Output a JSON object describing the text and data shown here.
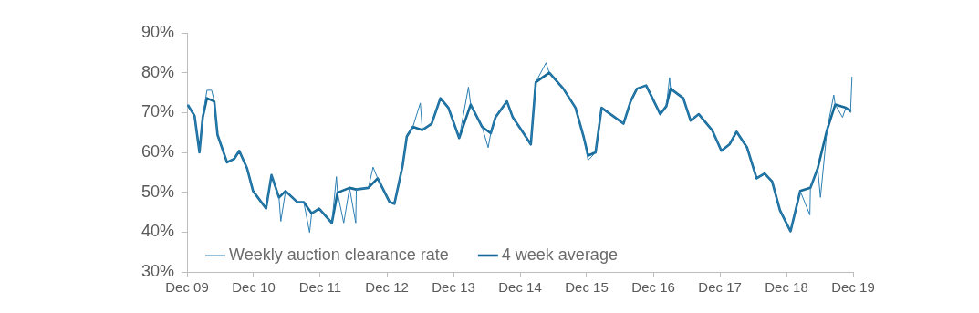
{
  "chart_data": {
    "type": "line",
    "legend": "bottom left",
    "grid": false,
    "marker": "none",
    "line_style": "solid",
    "xlim": [
      "2009-12-01",
      "2019-12-01"
    ],
    "xticks": [
      {
        "value": "2009-12-01",
        "label": "Dec 09"
      },
      {
        "value": "2010-12-01",
        "label": "Dec 10"
      },
      {
        "value": "2011-12-01",
        "label": "Dec 11"
      },
      {
        "value": "2012-12-01",
        "label": "Dec 12"
      },
      {
        "value": "2013-12-01",
        "label": "Dec 13"
      },
      {
        "value": "2014-12-01",
        "label": "Dec 14"
      },
      {
        "value": "2015-12-01",
        "label": "Dec 15"
      },
      {
        "value": "2016-12-01",
        "label": "Dec 16"
      },
      {
        "value": "2017-12-01",
        "label": "Dec 17"
      },
      {
        "value": "2018-12-01",
        "label": "Dec 18"
      },
      {
        "value": "2019-12-01",
        "label": "Dec 19"
      }
    ],
    "ylim": [
      30,
      90
    ],
    "yticks": [
      {
        "value": 30,
        "label": "30%"
      },
      {
        "value": 40,
        "label": "40%"
      },
      {
        "value": 50,
        "label": "50%"
      },
      {
        "value": 60,
        "label": "60%"
      },
      {
        "value": 70,
        "label": "70%"
      },
      {
        "value": 80,
        "label": "80%"
      },
      {
        "value": 90,
        "label": "90%"
      }
    ],
    "series": [
      {
        "name": "Weekly auction clearance rate",
        "color": "#2b7fb4",
        "x": [
          "2009-12-05",
          "2010-01-11",
          "2010-02-07",
          "2010-02-25",
          "2010-03-20",
          "2010-04-15",
          "2010-04-29",
          "2010-05-17",
          "2010-07-08",
          "2010-08-17",
          "2010-09-13",
          "2010-10-26",
          "2010-11-28",
          "2011-02-07",
          "2011-03-09",
          "2011-04-19",
          "2011-04-29",
          "2011-05-25",
          "2011-07-29",
          "2011-09-02",
          "2011-10-04",
          "2011-10-15",
          "2011-11-25",
          "2012-02-03",
          "2012-02-28",
          "2012-03-05",
          "2012-04-08",
          "2012-05-10",
          "2012-06-13",
          "2012-06-16",
          "2012-08-21",
          "2012-09-16",
          "2012-10-11",
          "2012-12-16",
          "2013-01-11",
          "2013-02-25",
          "2013-03-20",
          "2013-04-22",
          "2013-06-02",
          "2013-06-13",
          "2013-08-03",
          "2013-09-20",
          "2013-11-03",
          "2014-01-01",
          "2014-02-21",
          "2014-03-05",
          "2014-05-07",
          "2014-06-09",
          "2014-06-23",
          "2014-07-19",
          "2014-09-20",
          "2014-10-22",
          "2014-12-20",
          "2015-01-29",
          "2015-02-25",
          "2015-04-22",
          "2015-05-10",
          "2015-07-26",
          "2015-10-01",
          "2015-11-14",
          "2015-12-09",
          "2016-01-19",
          "2016-02-21",
          "2016-04-22",
          "2016-06-20",
          "2016-07-29",
          "2016-09-02",
          "2016-10-22",
          "2017-01-08",
          "2017-02-10",
          "2017-02-28",
          "2017-03-05",
          "2017-05-14",
          "2017-06-23",
          "2017-08-07",
          "2017-10-19",
          "2017-12-09",
          "2018-01-22",
          "2018-03-02",
          "2018-04-29",
          "2018-06-20",
          "2018-08-03",
          "2018-09-13",
          "2018-10-26",
          "2018-12-23",
          "2019-02-14",
          "2019-04-08",
          "2019-04-11",
          "2019-05-21",
          "2019-06-05",
          "2019-07-11",
          "2019-08-17",
          "2019-08-25",
          "2019-10-04",
          "2019-10-22",
          "2019-11-17",
          "2019-11-25"
        ],
        "values": [
          72,
          69,
          60,
          69,
          75.6,
          75.6,
          72.8,
          64.4,
          57.5,
          58.4,
          60.4,
          56,
          50.3,
          45.9,
          54.3,
          48.7,
          42.7,
          50.3,
          47.5,
          47.5,
          39.9,
          44.7,
          45.9,
          42.3,
          53.9,
          49.9,
          42.3,
          51.1,
          42.3,
          50.7,
          51.1,
          56.3,
          53.5,
          47.5,
          47.1,
          56.7,
          64,
          66.4,
          72.4,
          65.6,
          67.2,
          73.6,
          71.2,
          63.6,
          76.4,
          72,
          66.4,
          61.2,
          64.8,
          68.8,
          72.8,
          68.8,
          64.8,
          62,
          77.6,
          82.5,
          80,
          76,
          71.2,
          64,
          58,
          60,
          71.2,
          69.2,
          67.2,
          72.8,
          76,
          76.8,
          69.6,
          71.6,
          78.8,
          76,
          73.6,
          68,
          69.6,
          65.6,
          60.4,
          62,
          65.2,
          61.2,
          53.5,
          54.7,
          52.7,
          45.5,
          40.2,
          50.3,
          44.3,
          51.1,
          56,
          48.7,
          65.6,
          74.4,
          72,
          68.8,
          71.2,
          70,
          79
        ]
      },
      {
        "name": "4 week average",
        "color": "#166a98",
        "x": [
          "2009-12-05",
          "2010-01-11",
          "2010-02-07",
          "2010-02-25",
          "2010-03-20",
          "2010-04-29",
          "2010-05-17",
          "2010-07-08",
          "2010-08-17",
          "2010-09-13",
          "2010-10-26",
          "2010-11-28",
          "2011-02-07",
          "2011-03-09",
          "2011-04-19",
          "2011-05-25",
          "2011-07-29",
          "2011-09-02",
          "2011-10-15",
          "2011-11-25",
          "2012-02-03",
          "2012-03-05",
          "2012-05-10",
          "2012-06-16",
          "2012-08-21",
          "2012-10-11",
          "2012-12-16",
          "2013-01-11",
          "2013-02-25",
          "2013-03-20",
          "2013-04-22",
          "2013-06-13",
          "2013-08-03",
          "2013-09-20",
          "2013-11-03",
          "2014-01-01",
          "2014-03-05",
          "2014-05-07",
          "2014-06-23",
          "2014-07-19",
          "2014-09-20",
          "2014-10-22",
          "2014-12-20",
          "2015-01-29",
          "2015-02-25",
          "2015-05-10",
          "2015-07-26",
          "2015-10-01",
          "2015-11-14",
          "2015-12-09",
          "2016-01-19",
          "2016-02-21",
          "2016-04-22",
          "2016-06-20",
          "2016-07-29",
          "2016-09-02",
          "2016-10-22",
          "2017-01-08",
          "2017-02-10",
          "2017-03-05",
          "2017-05-14",
          "2017-06-23",
          "2017-08-07",
          "2017-10-19",
          "2017-12-09",
          "2018-01-22",
          "2018-03-02",
          "2018-04-29",
          "2018-06-20",
          "2018-08-03",
          "2018-09-13",
          "2018-10-26",
          "2018-12-23",
          "2019-02-14",
          "2019-04-11",
          "2019-05-21",
          "2019-07-11",
          "2019-08-25",
          "2019-10-22",
          "2019-11-21"
        ],
        "values": [
          71.9,
          69.2,
          60,
          68.8,
          73.6,
          72.8,
          64.4,
          57.5,
          58.4,
          60.4,
          56,
          50.3,
          45.9,
          54.3,
          48.7,
          50.3,
          47.5,
          47.5,
          44.7,
          45.9,
          42.3,
          49.9,
          51.1,
          50.7,
          51.1,
          53.5,
          47.5,
          47.1,
          56.7,
          64,
          66.4,
          65.6,
          67.2,
          73.6,
          71.2,
          63.6,
          72,
          66.4,
          64.8,
          68.8,
          72.8,
          68.8,
          64.8,
          62,
          77.6,
          80,
          76,
          71.2,
          64,
          59.2,
          60,
          71.2,
          69.2,
          67.2,
          72.8,
          76,
          76.8,
          69.6,
          71.6,
          76,
          73.6,
          68,
          69.6,
          65.6,
          60.4,
          62,
          65.2,
          61.2,
          53.5,
          54.7,
          52.7,
          45.5,
          40.2,
          50.3,
          51.1,
          56,
          65.6,
          72,
          71.2,
          70.4
        ]
      }
    ]
  }
}
